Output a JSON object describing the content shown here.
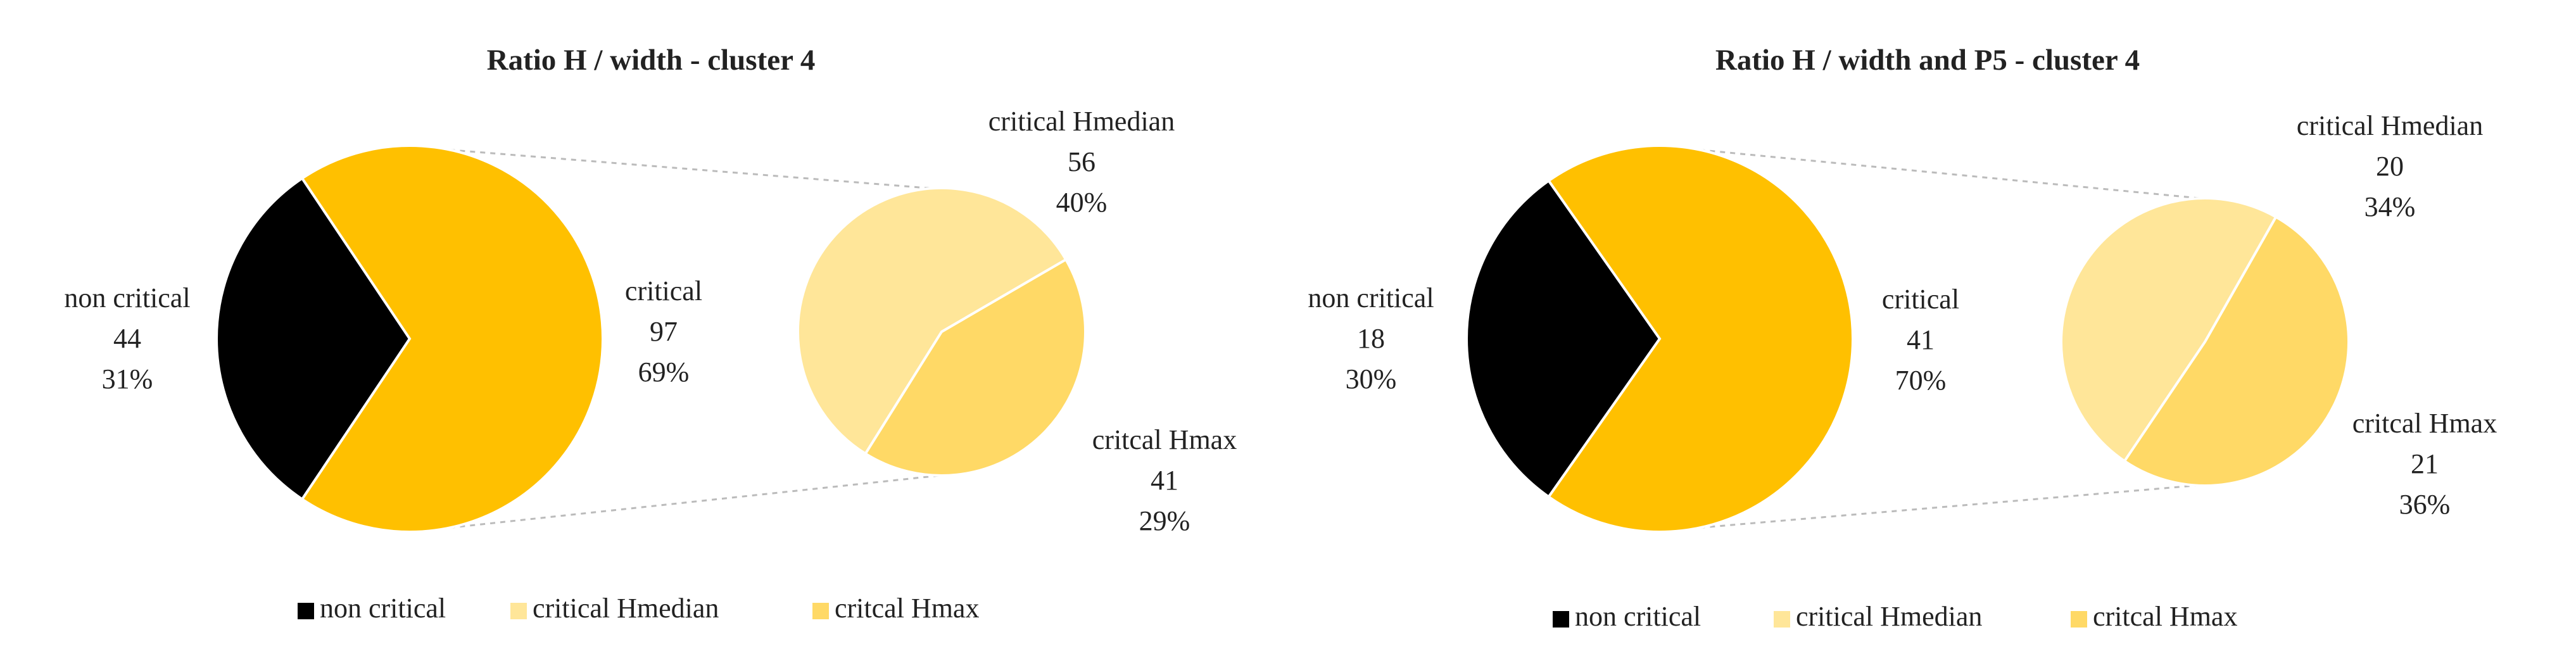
{
  "chart_data": [
    {
      "type": "pie-of-pie",
      "title": "Ratio H / width - cluster 4",
      "categories": [
        "non critical",
        "critical"
      ],
      "values": [
        44,
        97
      ],
      "percent_labels": [
        "31%",
        "69%"
      ],
      "colors": [
        "#000000",
        "#ffc000"
      ],
      "breakdown": {
        "categories": [
          "critical Hmedian",
          "critcal Hmax"
        ],
        "values": [
          56,
          41
        ],
        "percent_labels": [
          "40%",
          "29%"
        ],
        "colors": [
          "#ffe699",
          "#ffd966"
        ]
      }
    },
    {
      "type": "pie-of-pie",
      "title": "Ratio H / width and P5 - cluster 4",
      "categories": [
        "non critical",
        "critical"
      ],
      "values": [
        18,
        41
      ],
      "percent_labels": [
        "30%",
        "70%"
      ],
      "colors": [
        "#000000",
        "#ffc000"
      ],
      "breakdown": {
        "categories": [
          "critical Hmedian",
          "critcal Hmax"
        ],
        "values": [
          20,
          21
        ],
        "percent_labels": [
          "34%",
          "36%"
        ],
        "colors": [
          "#ffe699",
          "#ffd966"
        ]
      }
    }
  ]
}
